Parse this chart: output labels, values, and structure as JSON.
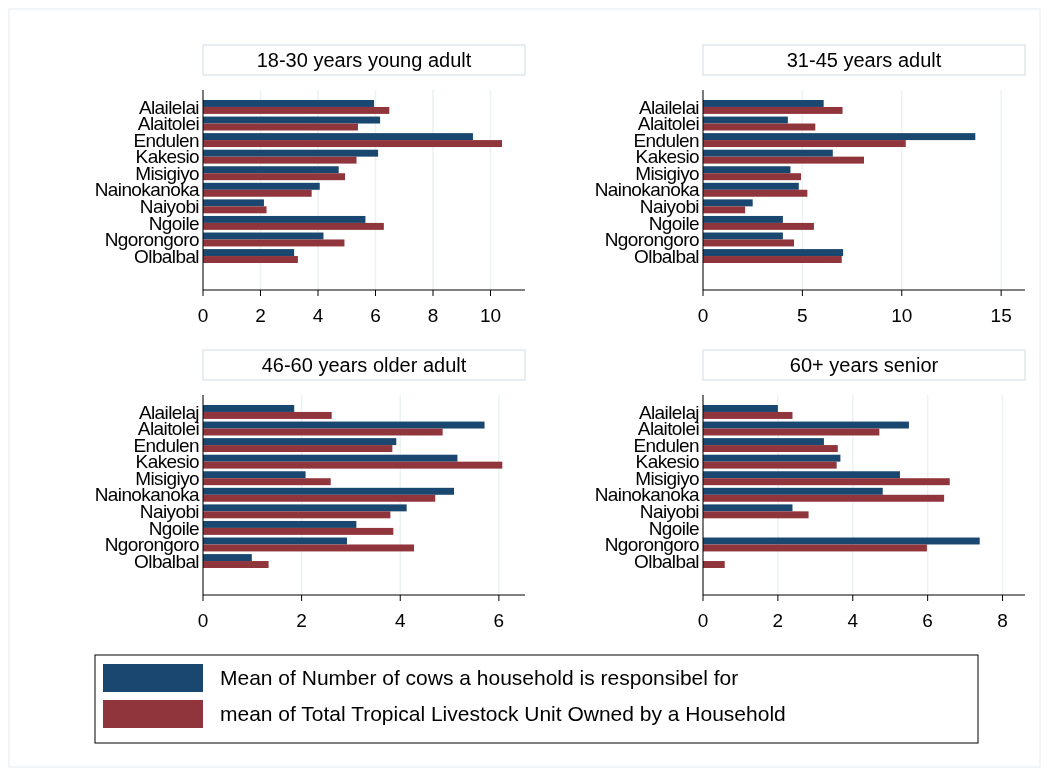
{
  "chart_data": [
    {
      "type": "bar",
      "orientation": "horizontal",
      "title": "18-30 years young adult",
      "categories": [
        "Alailelai",
        "Alaitolei",
        "Endulen",
        "Kakesio",
        "Misigiyo",
        "Nainokanoka",
        "Naiyobi",
        "Ngoile",
        "Ngorongoro",
        "Olbalbal"
      ],
      "series": [
        {
          "name": "Mean of Number of cows a household is responsibel for",
          "color": "#1a476f",
          "values": [
            5.95,
            6.16,
            9.39,
            6.09,
            4.72,
            4.06,
            2.12,
            5.65,
            4.19,
            3.17
          ]
        },
        {
          "name": "mean of Total Tropical Livestock Unit Owned by a Household",
          "color": "#90353b",
          "values": [
            6.48,
            5.39,
            10.4,
            5.34,
            4.94,
            3.78,
            2.21,
            6.29,
            4.92,
            3.3
          ]
        }
      ],
      "xlim": [
        0,
        11.2
      ],
      "xticks": [
        0,
        2,
        4,
        6,
        8,
        10
      ],
      "grid": "x",
      "legend": "bottom"
    },
    {
      "type": "bar",
      "orientation": "horizontal",
      "title": "31-45 years adult",
      "categories": [
        "Alailelai",
        "Alaitolei",
        "Endulen",
        "Kakesio",
        "Misigiyo",
        "Nainokanoka",
        "Naiyobi",
        "Ngoile",
        "Ngorongoro",
        "Olbalbal"
      ],
      "series": [
        {
          "color": "#1a476f",
          "values": [
            6.07,
            4.27,
            13.7,
            6.53,
            4.4,
            4.82,
            2.5,
            4.02,
            4.02,
            7.05
          ]
        },
        {
          "color": "#90353b",
          "values": [
            7.02,
            5.65,
            10.2,
            8.1,
            4.93,
            5.25,
            2.12,
            5.58,
            4.58,
            6.98
          ]
        }
      ],
      "xlim": [
        0,
        16.2
      ],
      "xticks": [
        0,
        5,
        10,
        15
      ],
      "grid": "x"
    },
    {
      "type": "bar",
      "orientation": "horizontal",
      "title": "46-60 years older adult",
      "categories": [
        "Alailelaj",
        "Alaitolei",
        "Endulen",
        "Kakesio",
        "Misigiyo",
        "Nainokanoka",
        "Naiyobi",
        "Ngoile",
        "Ngorongoro",
        "Olbalbal"
      ],
      "series": [
        {
          "color": "#1a476f",
          "values": [
            1.85,
            5.71,
            3.92,
            5.16,
            2.08,
            5.09,
            4.13,
            3.11,
            2.92,
            0.99
          ]
        },
        {
          "color": "#90353b",
          "values": [
            2.61,
            4.86,
            3.84,
            6.07,
            2.59,
            4.71,
            3.8,
            3.86,
            4.28,
            1.33
          ]
        }
      ],
      "xlim": [
        0,
        6.53
      ],
      "xticks": [
        0,
        2,
        4,
        6
      ],
      "grid": "x"
    },
    {
      "type": "bar",
      "orientation": "horizontal",
      "title": "60+ years senior",
      "categories": [
        "Alailelaj",
        "Alaitolei",
        "Endulen",
        "Kakesio",
        "Misigiyo",
        "Nainokanoka",
        "Naiyobi",
        "Ngoile",
        "Ngorongoro",
        "Olbalbal"
      ],
      "series": [
        {
          "color": "#1a476f",
          "values": [
            2.0,
            5.5,
            3.23,
            3.67,
            5.26,
            4.8,
            2.39,
            null,
            7.39,
            null
          ]
        },
        {
          "color": "#90353b",
          "values": [
            2.39,
            4.71,
            3.6,
            3.57,
            6.59,
            6.44,
            2.82,
            null,
            5.98,
            0.58
          ]
        }
      ],
      "xlim": [
        0,
        8.6
      ],
      "xticks": [
        0,
        2,
        4,
        6,
        8
      ],
      "grid": "x"
    }
  ]
}
